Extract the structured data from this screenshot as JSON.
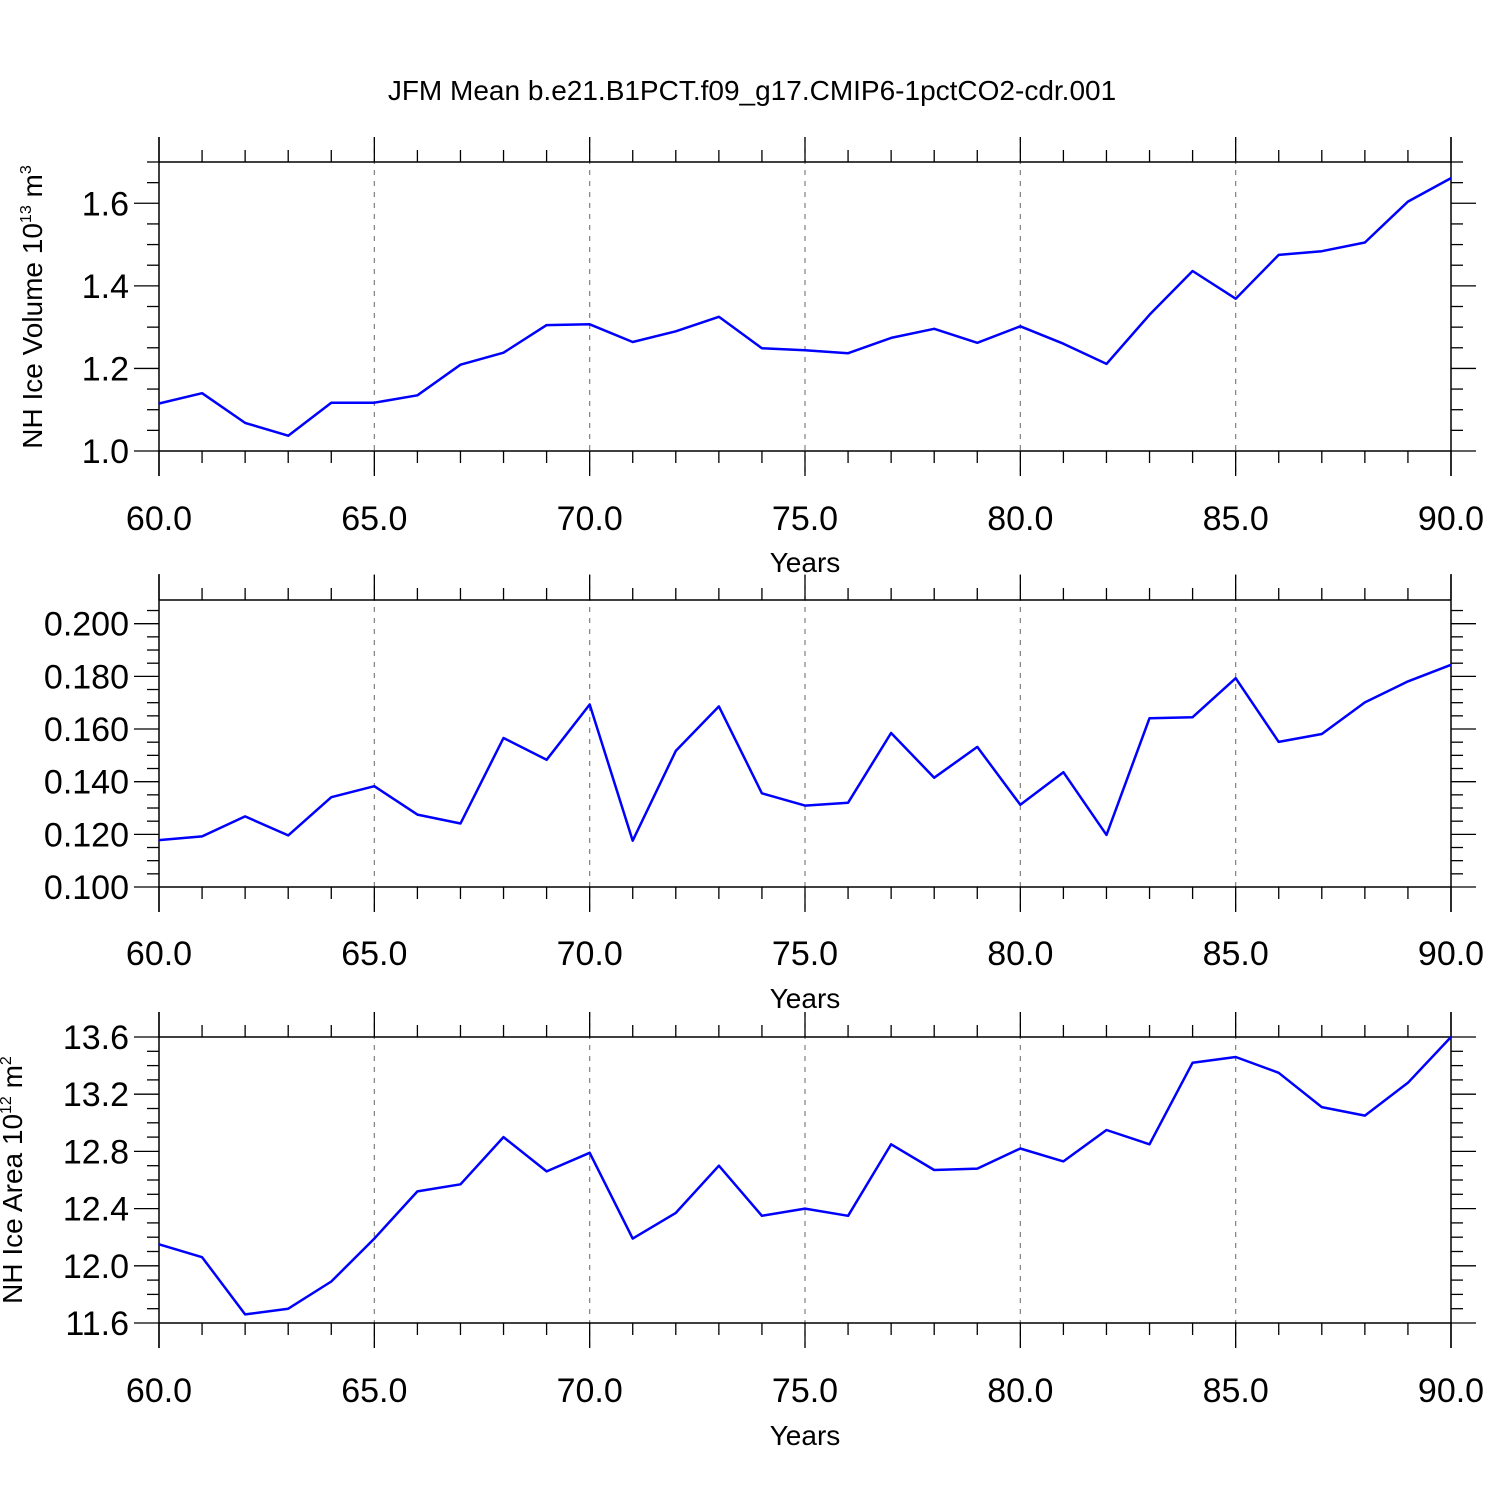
{
  "figure_title": "JFM Mean b.e21.B1PCT.f09_g17.CMIP6-1pctCO2-cdr.001",
  "colors": {
    "series_line": "#0000ff",
    "axes": "#000000",
    "grid": "#808080",
    "background": "#ffffff"
  },
  "chart_data": [
    {
      "type": "line",
      "title": "JFM Mean b.e21.B1PCT.f09_g17.CMIP6-1pctCO2-cdr.001",
      "xlabel": "Years",
      "ylabel": {
        "prefix": "NH Ice Volume 10",
        "exponent": "13",
        "unit": " m",
        "unit_exponent": "3"
      },
      "xlim": [
        60,
        90
      ],
      "ylim": [
        1.0,
        1.7
      ],
      "xticks": [
        "60.0",
        "65.0",
        "70.0",
        "75.0",
        "80.0",
        "85.0",
        "90.0"
      ],
      "yticks": [
        "1.0",
        "1.2",
        "1.4",
        "1.6"
      ],
      "grid": "vertical dashed at major x ticks",
      "x": [
        60,
        61,
        62,
        63,
        64,
        65,
        66,
        67,
        68,
        69,
        70,
        71,
        72,
        73,
        74,
        75,
        76,
        77,
        78,
        79,
        80,
        81,
        82,
        83,
        84,
        85,
        86,
        87,
        88,
        89,
        90
      ],
      "series": [
        {
          "values": [
            1.115,
            1.14,
            1.068,
            1.037,
            1.117,
            1.117,
            1.135,
            1.209,
            1.238,
            1.305,
            1.307,
            1.264,
            1.29,
            1.325,
            1.249,
            1.244,
            1.237,
            1.274,
            1.296,
            1.262,
            1.302,
            1.26,
            1.211,
            1.33,
            1.436,
            1.369,
            1.475,
            1.484,
            1.505,
            1.604,
            1.661
          ]
        }
      ]
    },
    {
      "type": "line",
      "xlabel": "Years",
      "ylabel": null,
      "xlim": [
        60,
        90
      ],
      "ylim": [
        0.1,
        0.209
      ],
      "xticks": [
        "60.0",
        "65.0",
        "70.0",
        "75.0",
        "80.0",
        "85.0",
        "90.0"
      ],
      "yticks": [
        "0.100",
        "0.120",
        "0.140",
        "0.160",
        "0.180",
        "0.200"
      ],
      "grid": "vertical dashed at major x ticks",
      "x": [
        60,
        61,
        62,
        63,
        64,
        65,
        66,
        67,
        68,
        69,
        70,
        71,
        72,
        73,
        74,
        75,
        76,
        77,
        78,
        79,
        80,
        81,
        82,
        83,
        84,
        85,
        86,
        87,
        88,
        89,
        90
      ],
      "series": [
        {
          "values": [
            0.1178,
            0.1192,
            0.1268,
            0.1196,
            0.1341,
            0.1383,
            0.1275,
            0.1241,
            0.1566,
            0.1483,
            0.1693,
            0.1176,
            0.1517,
            0.1686,
            0.1356,
            0.1309,
            0.132,
            0.1585,
            0.1415,
            0.1532,
            0.1312,
            0.1436,
            0.1198,
            0.1641,
            0.1645,
            0.1793,
            0.1551,
            0.1581,
            0.1701,
            0.1781,
            0.1844
          ]
        }
      ]
    },
    {
      "type": "line",
      "xlabel": "Years",
      "ylabel": {
        "prefix": "NH Ice Area 10",
        "exponent": "12",
        "unit": " m",
        "unit_exponent": "2"
      },
      "xlim": [
        60,
        90
      ],
      "ylim": [
        11.6,
        13.6
      ],
      "xticks": [
        "60.0",
        "65.0",
        "70.0",
        "75.0",
        "80.0",
        "85.0",
        "90.0"
      ],
      "yticks": [
        "11.6",
        "12.0",
        "12.4",
        "12.8",
        "13.2",
        "13.6"
      ],
      "grid": "vertical dashed at major x ticks",
      "x": [
        60,
        61,
        62,
        63,
        64,
        65,
        66,
        67,
        68,
        69,
        70,
        71,
        72,
        73,
        74,
        75,
        76,
        77,
        78,
        79,
        80,
        81,
        82,
        83,
        84,
        85,
        86,
        87,
        88,
        89,
        90
      ],
      "series": [
        {
          "values": [
            12.15,
            12.06,
            11.66,
            11.7,
            11.89,
            12.19,
            12.52,
            12.57,
            12.9,
            12.66,
            12.79,
            12.19,
            12.37,
            12.7,
            12.35,
            12.4,
            12.35,
            12.85,
            12.67,
            12.68,
            12.82,
            12.73,
            12.95,
            12.85,
            13.42,
            13.46,
            13.35,
            13.11,
            13.05,
            13.28,
            13.6
          ]
        }
      ]
    }
  ]
}
